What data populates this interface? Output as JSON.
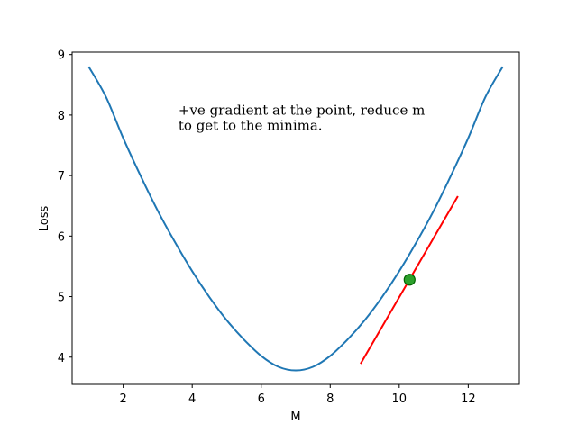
{
  "chart_data": {
    "type": "line",
    "title": "",
    "xlabel": "M",
    "ylabel": "Loss",
    "xlim": [
      0.52,
      13.48
    ],
    "ylim": [
      3.55,
      9.04
    ],
    "x_ticks": [
      2,
      4,
      6,
      8,
      10,
      12
    ],
    "y_ticks": [
      4,
      5,
      6,
      7,
      8,
      9
    ],
    "grid": false,
    "series": [
      {
        "kind": "curve",
        "color": "#1f77b4",
        "x": [
          1.0,
          1.5,
          2.0,
          2.5,
          3.0,
          3.5,
          4.0,
          4.5,
          5.0,
          5.5,
          6.0,
          6.5,
          7.0,
          7.5,
          8.0,
          8.5,
          9.0,
          9.5,
          10.0,
          10.5,
          11.0,
          11.5,
          12.0,
          12.5,
          13.0
        ],
        "y": [
          8.8,
          8.3,
          7.62,
          7.0,
          6.42,
          5.9,
          5.42,
          4.99,
          4.61,
          4.29,
          4.02,
          3.84,
          3.78,
          3.84,
          4.02,
          4.29,
          4.61,
          4.99,
          5.42,
          5.9,
          6.42,
          7.0,
          7.62,
          8.3,
          8.8
        ]
      },
      {
        "kind": "tangent",
        "color": "#ff0000",
        "x": [
          8.88,
          11.7
        ],
        "y": [
          3.89,
          6.66
        ]
      },
      {
        "kind": "point",
        "color": "#2ca02c",
        "edgecolor": "#006400",
        "x": [
          10.3
        ],
        "y": [
          5.28
        ]
      }
    ],
    "annotation": {
      "line1": "+ve gradient at the point, reduce m",
      "line2": "to get to the minima.",
      "x": 3.6,
      "y_top": 8.05
    }
  }
}
